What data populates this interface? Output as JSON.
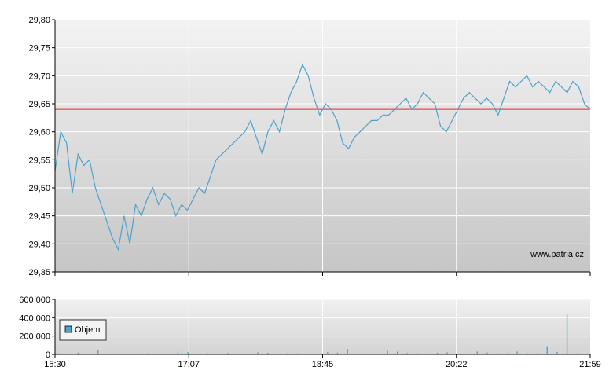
{
  "chart_data": [
    {
      "type": "line",
      "y_ticks": [
        "29,35",
        "29,40",
        "29,45",
        "29,50",
        "29,55",
        "29,60",
        "29,65",
        "29,70",
        "29,75",
        "29,80"
      ],
      "ylim": [
        29.35,
        29.8
      ],
      "x_ticks": [
        "15:30",
        "17:07",
        "18:45",
        "20:22",
        "21:59"
      ],
      "reference_line": {
        "value": 29.64,
        "color": "#e05050"
      },
      "line_color": "#4aa3d0",
      "watermark": "www.patria.cz",
      "grid": true,
      "series": [
        {
          "values": [
            29.53,
            29.6,
            29.58,
            29.49,
            29.56,
            29.54,
            29.55,
            29.5,
            29.47,
            29.44,
            29.41,
            29.39,
            29.45,
            29.4,
            29.47,
            29.45,
            29.48,
            29.5,
            29.47,
            29.49,
            29.48,
            29.45,
            29.47,
            29.46,
            29.48,
            29.5,
            29.49,
            29.52,
            29.55,
            29.56,
            29.57,
            29.58,
            29.59,
            29.6,
            29.62,
            29.59,
            29.56,
            29.6,
            29.62,
            29.6,
            29.64,
            29.67,
            29.69,
            29.72,
            29.7,
            29.66,
            29.63,
            29.65,
            29.64,
            29.62,
            29.58,
            29.57,
            29.59,
            29.6,
            29.61,
            29.62,
            29.62,
            29.63,
            29.63,
            29.64,
            29.65,
            29.66,
            29.64,
            29.65,
            29.67,
            29.66,
            29.65,
            29.61,
            29.6,
            29.62,
            29.64,
            29.66,
            29.67,
            29.66,
            29.65,
            29.66,
            29.65,
            29.63,
            29.66,
            29.69,
            29.68,
            29.69,
            29.7,
            29.68,
            29.69,
            29.68,
            29.67,
            29.69,
            29.68,
            29.67,
            29.69,
            29.68,
            29.65,
            29.64
          ]
        }
      ]
    },
    {
      "type": "bar",
      "y_ticks": [
        "0",
        "200 000",
        "400 000",
        "600 000"
      ],
      "ylim": [
        0,
        600000
      ],
      "x_ticks": [
        "15:30",
        "17:07",
        "18:45",
        "20:22",
        "21:59"
      ],
      "bar_color": "#4aa3d0",
      "legend": {
        "label": "Objem",
        "position": "top-left"
      },
      "series": [
        {
          "name": "Objem",
          "values": [
            12000,
            8000,
            20000,
            6000,
            50000,
            9000,
            10000,
            7000,
            14000,
            11000,
            6000,
            9000,
            30000,
            25000,
            8000,
            12000,
            9000,
            15000,
            10000,
            7000,
            22000,
            18000,
            9000,
            14000,
            11000,
            9000,
            8000,
            24000,
            20000,
            60000,
            12000,
            10000,
            8000,
            40000,
            30000,
            15000,
            12000,
            10000,
            18000,
            22000,
            10000,
            9000,
            30000,
            20000,
            15000,
            12000,
            30000,
            14000,
            11000,
            90000,
            25000,
            440000,
            10000,
            8000
          ]
        }
      ]
    }
  ]
}
